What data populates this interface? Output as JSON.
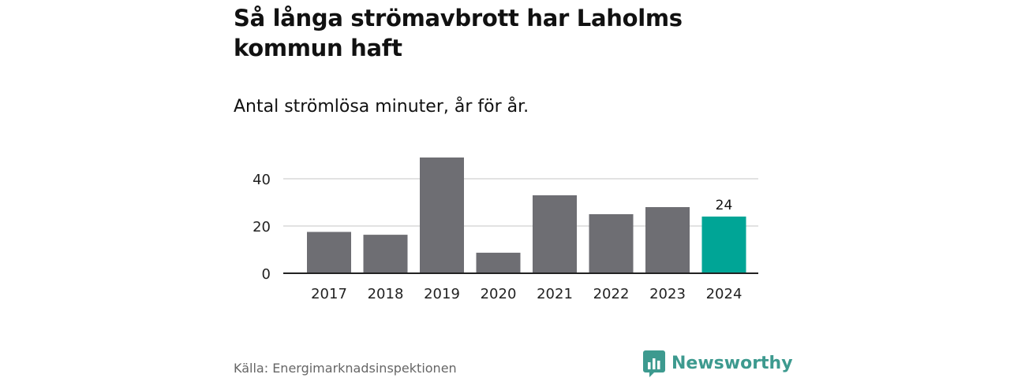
{
  "header": {
    "title": "Så långa strömavbrott har Laholms kommun haft",
    "subtitle": "Antal strömlösa minuter, år för år."
  },
  "footer": {
    "source": "Källa: Energimarknadsinspektionen",
    "brand": "Newsworthy",
    "brand_icon": "bar-chart-speech-bubble-icon"
  },
  "colors": {
    "bar": "#6e6e73",
    "highlight": "#00a596",
    "brand": "#3d9a8f",
    "grid": "#d9d9d9",
    "axis": "#222222"
  },
  "chart_data": {
    "type": "bar",
    "title": "Så långa strömavbrott har Laholms kommun haft",
    "subtitle": "Antal strömlösa minuter, år för år.",
    "xlabel": "",
    "ylabel": "",
    "categories": [
      "2017",
      "2018",
      "2019",
      "2020",
      "2021",
      "2022",
      "2023",
      "2024"
    ],
    "values": [
      17.5,
      16.3,
      49,
      8.7,
      33,
      25,
      28,
      24
    ],
    "highlight_index": 7,
    "data_labels": [
      {
        "index": 7,
        "text": "24"
      }
    ],
    "ylim": [
      0,
      50
    ],
    "yticks": [
      0,
      20,
      40
    ],
    "ytick_labels": [
      "0",
      "20",
      "40"
    ],
    "grid": true
  }
}
